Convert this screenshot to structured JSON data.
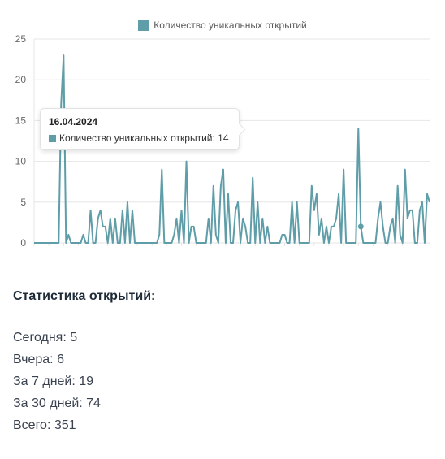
{
  "chart_data": {
    "type": "line",
    "legend": [
      "Количество уникальных открытий"
    ],
    "legend_position": "top",
    "ylim": [
      0,
      25
    ],
    "y_ticks": [
      "0",
      "5",
      "10",
      "15",
      "20",
      "25"
    ],
    "grid": true,
    "color": "#5f9ea8",
    "series": [
      {
        "name": "Количество уникальных открытий",
        "values": [
          0,
          0,
          0,
          0,
          0,
          0,
          0,
          0,
          0,
          0,
          0,
          17,
          23,
          0,
          1,
          0,
          0,
          0,
          0,
          0,
          1,
          0,
          0,
          4,
          0,
          0,
          3,
          4,
          2,
          2,
          0,
          3,
          0,
          3,
          0,
          0,
          4,
          0,
          5,
          0,
          4,
          0,
          0,
          0,
          0,
          0,
          0,
          0,
          0,
          0,
          0,
          1,
          9,
          0,
          0,
          0,
          0,
          1,
          3,
          0,
          4,
          0,
          10,
          0,
          2,
          2,
          0,
          0,
          0,
          0,
          0,
          3,
          0,
          7,
          1,
          0,
          7,
          9,
          0,
          6,
          0,
          0,
          4,
          5,
          0,
          3,
          2,
          0,
          0,
          8,
          0,
          5,
          0,
          3,
          0,
          2,
          0,
          0,
          0,
          0,
          0,
          1,
          1,
          0,
          0,
          5,
          0,
          5,
          0,
          0,
          0,
          0,
          0,
          7,
          4,
          6,
          1,
          3,
          0,
          2,
          0,
          2,
          2,
          3,
          6,
          0,
          9,
          0,
          0,
          0,
          0,
          0,
          14,
          2,
          0,
          0,
          0,
          0,
          0,
          0,
          3,
          5,
          2,
          0,
          0,
          2,
          3,
          0,
          7,
          1,
          0,
          9,
          3,
          4,
          4,
          0,
          0,
          4,
          5,
          0,
          6,
          5
        ]
      }
    ],
    "tooltip": {
      "date": "16.04.2024",
      "label": "Количество уникальных открытий: 14",
      "highlight_index": 133
    }
  },
  "stats": {
    "title": "Статистика открытий:",
    "lines": [
      "Сегодня: 5",
      "Вчера: 6",
      "За 7 дней: 19",
      "За 30 дней: 74",
      "Всего: 351"
    ]
  }
}
